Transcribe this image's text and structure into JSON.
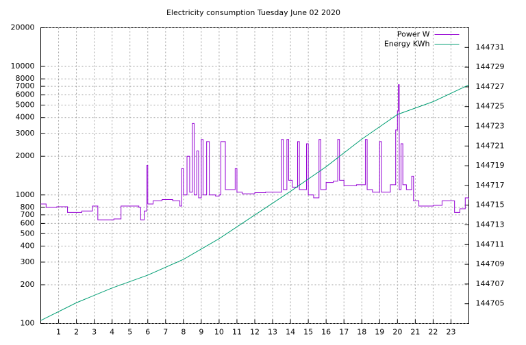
{
  "chart_data": {
    "type": "line",
    "title": "Electricity consumption Tuesday June 02 2020",
    "xlim": [
      0,
      24
    ],
    "xticks": [
      1,
      2,
      3,
      4,
      5,
      6,
      7,
      8,
      9,
      10,
      11,
      12,
      13,
      14,
      15,
      16,
      17,
      18,
      19,
      20,
      21,
      22,
      23
    ],
    "ylim": [
      100,
      20000
    ],
    "log_y": true,
    "yticks": [
      100,
      200,
      300,
      400,
      500,
      600,
      700,
      800,
      1000,
      2000,
      3000,
      4000,
      5000,
      6000,
      7000,
      8000,
      10000,
      20000
    ],
    "y2lim": [
      144703,
      144733
    ],
    "y2ticks": [
      144705,
      144707,
      144709,
      144711,
      144713,
      144715,
      144717,
      144719,
      144721,
      144723,
      144725,
      144727,
      144729,
      144731
    ],
    "grid": true,
    "legend": "top-right",
    "series": [
      {
        "name": "Power W",
        "color": "#9400d3",
        "style": "steps",
        "x": [
          0,
          0.3,
          0.9,
          1.5,
          2.3,
          2.9,
          3.2,
          4.1,
          4.5,
          5.5,
          5.6,
          5.8,
          5.95,
          6.0,
          6.3,
          6.8,
          7.4,
          7.8,
          7.9,
          8.0,
          8.2,
          8.35,
          8.5,
          8.6,
          8.75,
          8.85,
          9.0,
          9.1,
          9.3,
          9.45,
          9.8,
          10.0,
          10.1,
          10.35,
          10.9,
          11.0,
          11.3,
          12.0,
          12.6,
          13.4,
          13.5,
          13.6,
          13.8,
          13.9,
          14.1,
          14.4,
          14.5,
          14.9,
          15.0,
          15.3,
          15.6,
          15.7,
          16.0,
          16.4,
          16.65,
          16.75,
          17.0,
          17.7,
          18.2,
          18.3,
          18.6,
          19.0,
          19.1,
          19.6,
          19.9,
          20.0,
          20.05,
          20.1,
          20.2,
          20.3,
          20.5,
          20.8,
          20.9,
          21.2,
          22.0,
          22.5,
          23.2,
          23.5,
          23.8,
          24.0
        ],
        "values": [
          850,
          800,
          810,
          730,
          750,
          820,
          640,
          650,
          820,
          800,
          640,
          750,
          1700,
          850,
          900,
          920,
          900,
          820,
          1600,
          1000,
          2000,
          1050,
          3600,
          1000,
          2200,
          950,
          2700,
          1000,
          2600,
          1000,
          980,
          1000,
          2600,
          1100,
          1600,
          1050,
          1020,
          1040,
          1050,
          1050,
          2700,
          1100,
          2700,
          1300,
          1150,
          2600,
          1100,
          2500,
          1000,
          950,
          2700,
          1100,
          1250,
          1280,
          2700,
          1300,
          1180,
          1200,
          2700,
          1100,
          1050,
          2600,
          1050,
          1200,
          3200,
          4500,
          7200,
          1100,
          2500,
          1200,
          1100,
          1400,
          900,
          820,
          830,
          900,
          730,
          780,
          950,
          920
        ]
      },
      {
        "name": "Energy KWh",
        "color": "#009e73",
        "axis": "y2",
        "x": [
          0,
          2,
          4,
          6,
          8,
          10,
          12,
          14,
          16,
          18,
          20,
          22,
          24
        ],
        "values": [
          144703.3,
          144705.1,
          144706.6,
          144707.9,
          144709.5,
          144711.6,
          144714,
          144716.4,
          144718.9,
          144721.7,
          144724.2,
          144725.5,
          144727.2
        ]
      }
    ]
  }
}
